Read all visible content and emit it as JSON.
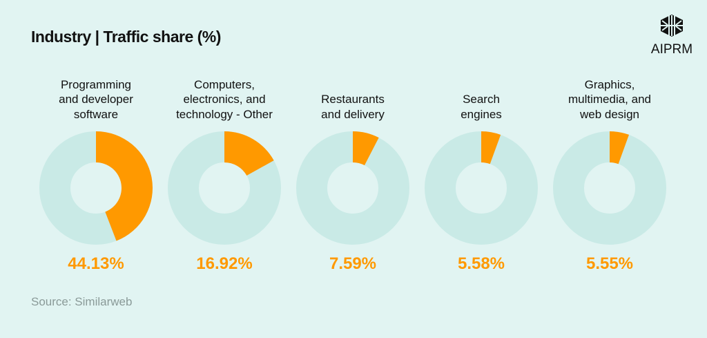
{
  "header": {
    "title": "Industry | Traffic share (%)",
    "logo_text": "AIPRM"
  },
  "chart_data": {
    "type": "pie",
    "variant": "donut",
    "title": "Industry | Traffic share (%)",
    "categories": [
      "Programming and developer software",
      "Computers, electronics, and technology - Other",
      "Restaurants and delivery",
      "Search engines",
      "Graphics, multimedia, and web design"
    ],
    "category_lines": [
      [
        "Programming",
        "and developer",
        "software"
      ],
      [
        "Computers,",
        "electronics, and",
        "technology - Other"
      ],
      [
        "Restaurants",
        "and delivery"
      ],
      [
        "Search",
        "engines"
      ],
      [
        "Graphics,",
        "multimedia, and",
        "web design"
      ]
    ],
    "values": [
      44.13,
      16.92,
      7.59,
      5.58,
      5.55
    ],
    "labels": [
      "44.13%",
      "16.92%",
      "7.59%",
      "5.58%",
      "5.55%"
    ],
    "unit": "%"
  },
  "colors": {
    "background": "#e1f4f2",
    "share": "#ff9900",
    "remainder": "#c9eae6"
  },
  "footer": {
    "source": "Source: Similarweb"
  }
}
